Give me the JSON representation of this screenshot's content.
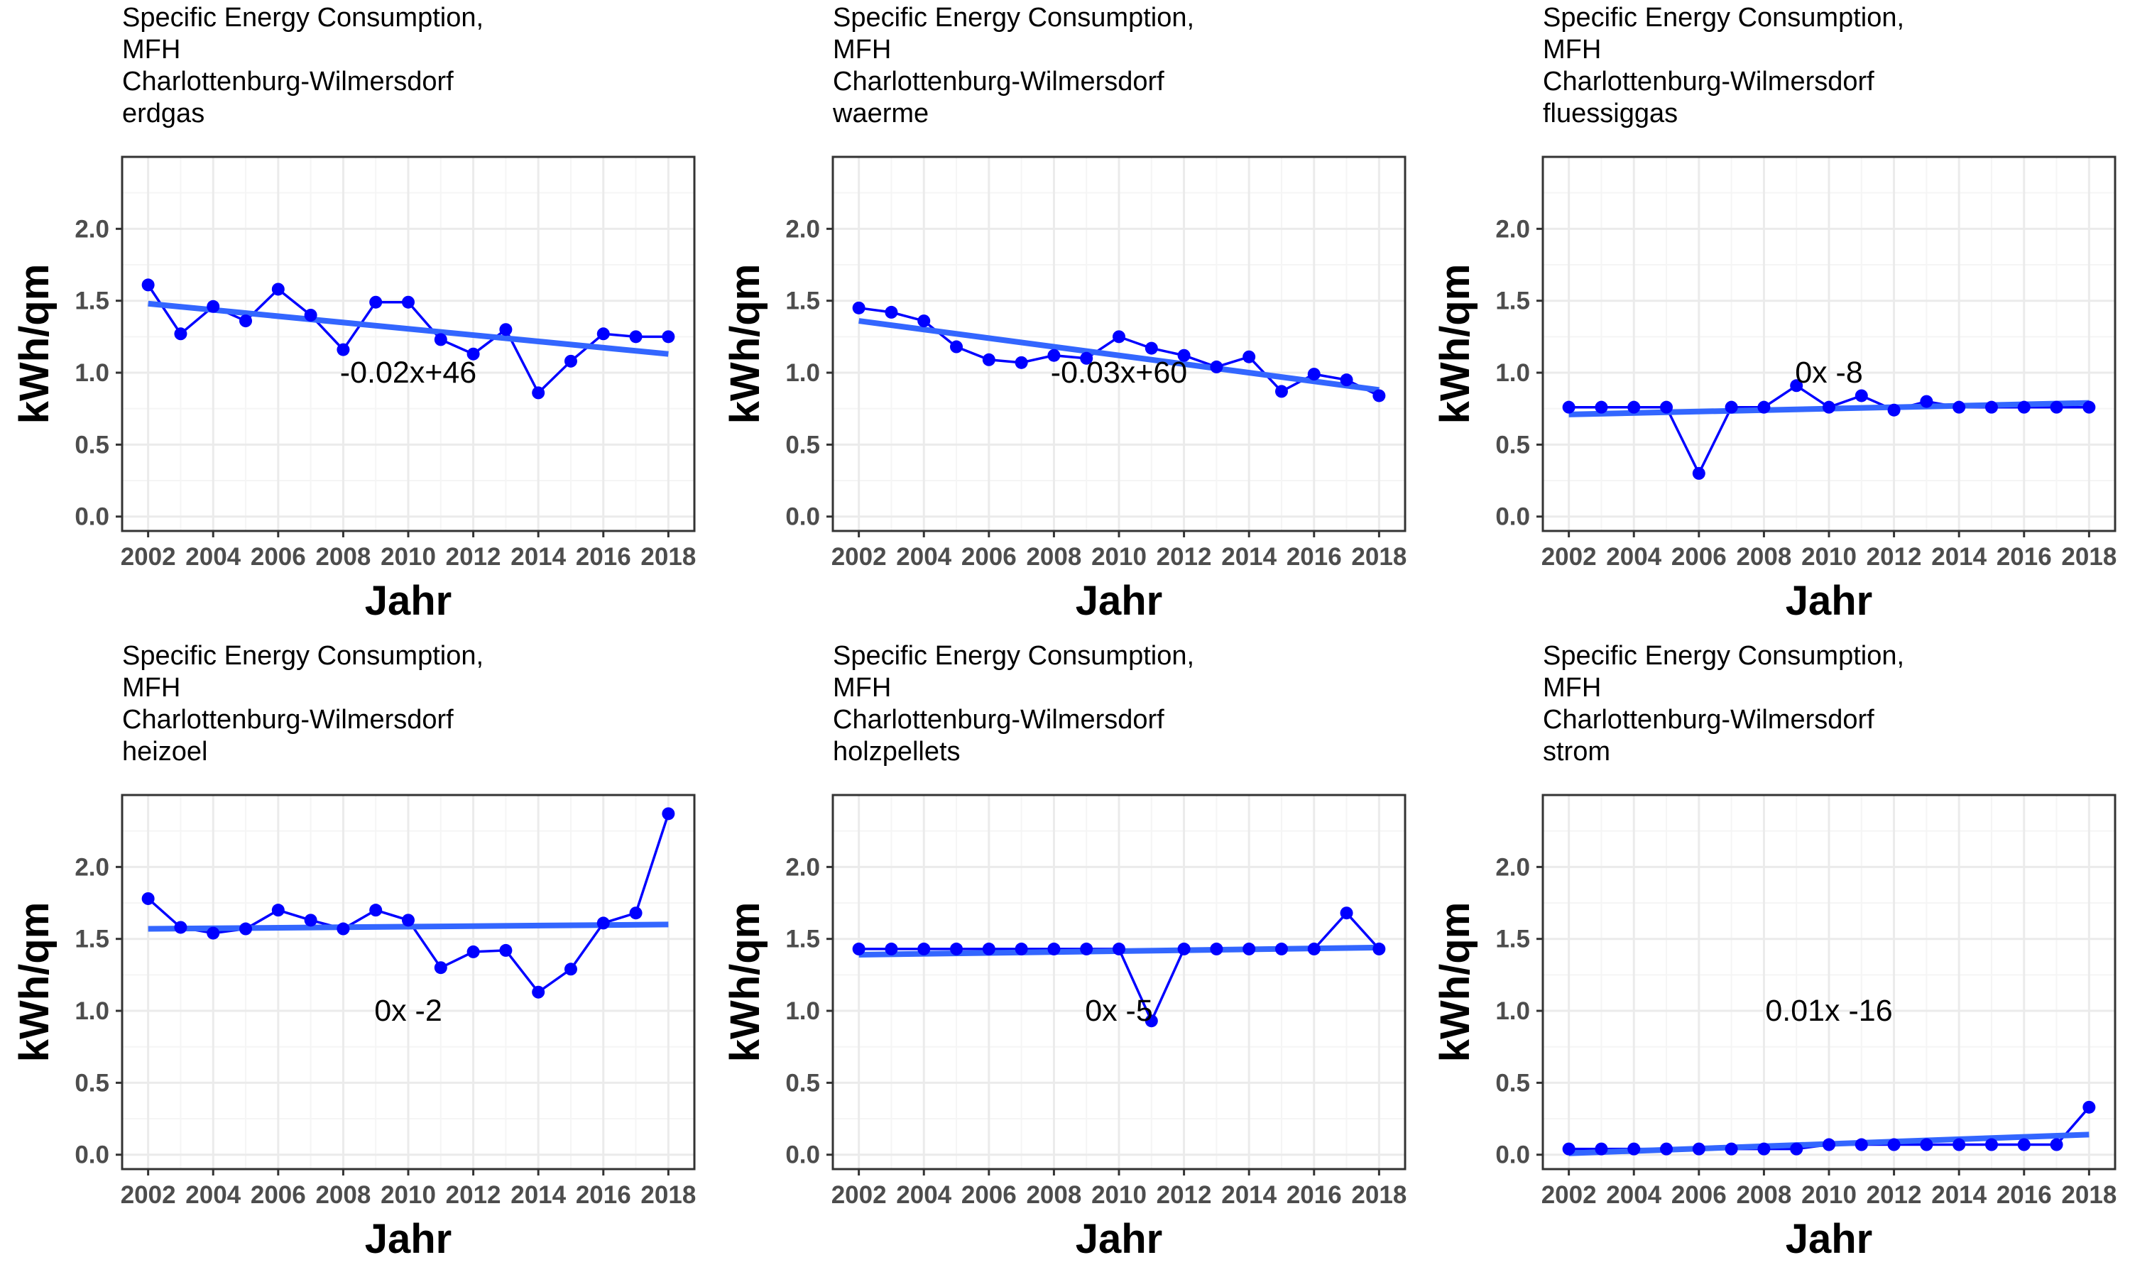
{
  "chart_data": [
    {
      "type": "line",
      "title_lines": [
        "Specific Energy Consumption,",
        "MFH",
        "Charlottenburg-Wilmersdorf",
        "erdgas"
      ],
      "xlabel": "Jahr",
      "ylabel": "kWh/qm",
      "x": [
        2002,
        2003,
        2004,
        2005,
        2006,
        2007,
        2008,
        2009,
        2010,
        2011,
        2012,
        2013,
        2014,
        2015,
        2016,
        2017,
        2018
      ],
      "series": [
        {
          "values": [
            1.61,
            1.27,
            1.46,
            1.36,
            1.58,
            1.4,
            1.16,
            1.49,
            1.49,
            1.23,
            1.13,
            1.3,
            0.86,
            1.08,
            1.27,
            1.25,
            1.25
          ]
        }
      ],
      "trend": [
        1.48,
        1.13
      ],
      "annotation": "-0.02x+46",
      "annotation_pos": [
        2010,
        1.0
      ],
      "xlim": [
        2001.2,
        2018.8
      ],
      "ylim": [
        -0.1,
        2.5
      ],
      "yticks": [
        "0.0",
        "0.5",
        "1.0",
        "1.5",
        "2.0"
      ],
      "xticks": [
        "2002",
        "2004",
        "2006",
        "2008",
        "2010",
        "2012",
        "2014",
        "2016",
        "2018"
      ],
      "grid": true
    },
    {
      "type": "line",
      "title_lines": [
        "Specific Energy Consumption,",
        "MFH",
        "Charlottenburg-Wilmersdorf",
        "waerme"
      ],
      "xlabel": "Jahr",
      "ylabel": "kWh/qm",
      "x": [
        2002,
        2003,
        2004,
        2005,
        2006,
        2007,
        2008,
        2009,
        2010,
        2011,
        2012,
        2013,
        2014,
        2015,
        2016,
        2017,
        2018
      ],
      "series": [
        {
          "values": [
            1.45,
            1.42,
            1.36,
            1.18,
            1.09,
            1.07,
            1.12,
            1.1,
            1.25,
            1.17,
            1.12,
            1.04,
            1.11,
            0.87,
            0.99,
            0.95,
            0.84
          ]
        }
      ],
      "trend": [
        1.36,
        0.88
      ],
      "annotation": "-0.03x+60",
      "annotation_pos": [
        2010,
        1.0
      ],
      "xlim": [
        2001.2,
        2018.8
      ],
      "ylim": [
        -0.1,
        2.5
      ],
      "yticks": [
        "0.0",
        "0.5",
        "1.0",
        "1.5",
        "2.0"
      ],
      "xticks": [
        "2002",
        "2004",
        "2006",
        "2008",
        "2010",
        "2012",
        "2014",
        "2016",
        "2018"
      ],
      "grid": true
    },
    {
      "type": "line",
      "title_lines": [
        "Specific Energy Consumption,",
        "MFH",
        "Charlottenburg-Wilmersdorf",
        "fluessiggas"
      ],
      "xlabel": "Jahr",
      "ylabel": "kWh/qm",
      "x": [
        2002,
        2003,
        2004,
        2005,
        2006,
        2007,
        2008,
        2009,
        2010,
        2011,
        2012,
        2013,
        2014,
        2015,
        2016,
        2017,
        2018
      ],
      "series": [
        {
          "values": [
            0.76,
            0.76,
            0.76,
            0.76,
            0.3,
            0.76,
            0.76,
            0.91,
            0.76,
            0.84,
            0.74,
            0.8,
            0.76,
            0.76,
            0.76,
            0.76,
            0.76
          ]
        }
      ],
      "trend": [
        0.71,
        0.79
      ],
      "annotation": "0x -8",
      "annotation_pos": [
        2010,
        1.0
      ],
      "xlim": [
        2001.2,
        2018.8
      ],
      "ylim": [
        -0.1,
        2.5
      ],
      "yticks": [
        "0.0",
        "0.5",
        "1.0",
        "1.5",
        "2.0"
      ],
      "xticks": [
        "2002",
        "2004",
        "2006",
        "2008",
        "2010",
        "2012",
        "2014",
        "2016",
        "2018"
      ],
      "grid": true
    },
    {
      "type": "line",
      "title_lines": [
        "Specific Energy Consumption,",
        "MFH",
        "Charlottenburg-Wilmersdorf",
        "heizoel"
      ],
      "xlabel": "Jahr",
      "ylabel": "kWh/qm",
      "x": [
        2002,
        2003,
        2004,
        2005,
        2006,
        2007,
        2008,
        2009,
        2010,
        2011,
        2012,
        2013,
        2014,
        2015,
        2016,
        2017,
        2018
      ],
      "series": [
        {
          "values": [
            1.78,
            1.58,
            1.54,
            1.57,
            1.7,
            1.63,
            1.57,
            1.7,
            1.63,
            1.3,
            1.41,
            1.42,
            1.13,
            1.29,
            1.61,
            1.68,
            2.37
          ]
        }
      ],
      "trend": [
        1.57,
        1.6
      ],
      "annotation": "0x -2",
      "annotation_pos": [
        2010,
        1.0
      ],
      "xlim": [
        2001.2,
        2018.8
      ],
      "ylim": [
        -0.1,
        2.5
      ],
      "yticks": [
        "0.0",
        "0.5",
        "1.0",
        "1.5",
        "2.0"
      ],
      "xticks": [
        "2002",
        "2004",
        "2006",
        "2008",
        "2010",
        "2012",
        "2014",
        "2016",
        "2018"
      ],
      "grid": true
    },
    {
      "type": "line",
      "title_lines": [
        "Specific Energy Consumption,",
        "MFH",
        "Charlottenburg-Wilmersdorf",
        "holzpellets"
      ],
      "xlabel": "Jahr",
      "ylabel": "kWh/qm",
      "x": [
        2002,
        2003,
        2004,
        2005,
        2006,
        2007,
        2008,
        2009,
        2010,
        2011,
        2012,
        2013,
        2014,
        2015,
        2016,
        2017,
        2018
      ],
      "series": [
        {
          "values": [
            1.43,
            1.43,
            1.43,
            1.43,
            1.43,
            1.43,
            1.43,
            1.43,
            1.43,
            0.93,
            1.43,
            1.43,
            1.43,
            1.43,
            1.43,
            1.68,
            1.43
          ]
        }
      ],
      "trend": [
        1.39,
        1.44
      ],
      "annotation": "0x -5",
      "annotation_pos": [
        2010,
        1.0
      ],
      "xlim": [
        2001.2,
        2018.8
      ],
      "ylim": [
        -0.1,
        2.5
      ],
      "yticks": [
        "0.0",
        "0.5",
        "1.0",
        "1.5",
        "2.0"
      ],
      "xticks": [
        "2002",
        "2004",
        "2006",
        "2008",
        "2010",
        "2012",
        "2014",
        "2016",
        "2018"
      ],
      "grid": true
    },
    {
      "type": "line",
      "title_lines": [
        "Specific Energy Consumption,",
        "MFH",
        "Charlottenburg-Wilmersdorf",
        "strom"
      ],
      "xlabel": "Jahr",
      "ylabel": "kWh/qm",
      "x": [
        2002,
        2003,
        2004,
        2005,
        2006,
        2007,
        2008,
        2009,
        2010,
        2011,
        2012,
        2013,
        2014,
        2015,
        2016,
        2017,
        2018
      ],
      "series": [
        {
          "values": [
            0.04,
            0.04,
            0.04,
            0.04,
            0.04,
            0.04,
            0.04,
            0.04,
            0.07,
            0.07,
            0.07,
            0.07,
            0.07,
            0.07,
            0.07,
            0.07,
            0.33
          ]
        }
      ],
      "trend": [
        0.01,
        0.14
      ],
      "annotation": "0.01x -16",
      "annotation_pos": [
        2010,
        1.0
      ],
      "xlim": [
        2001.2,
        2018.8
      ],
      "ylim": [
        -0.1,
        2.5
      ],
      "yticks": [
        "0.0",
        "0.5",
        "1.0",
        "1.5",
        "2.0"
      ],
      "xticks": [
        "2002",
        "2004",
        "2006",
        "2008",
        "2010",
        "2012",
        "2014",
        "2016",
        "2018"
      ],
      "grid": true
    }
  ],
  "colors": {
    "points_and_line": "#0000ff",
    "trend": "#3366ff",
    "grid_major": "#ebebeb",
    "grid_minor": "#f5f5f5",
    "axis_text": "#4d4d4d",
    "title_text": "#000000"
  }
}
